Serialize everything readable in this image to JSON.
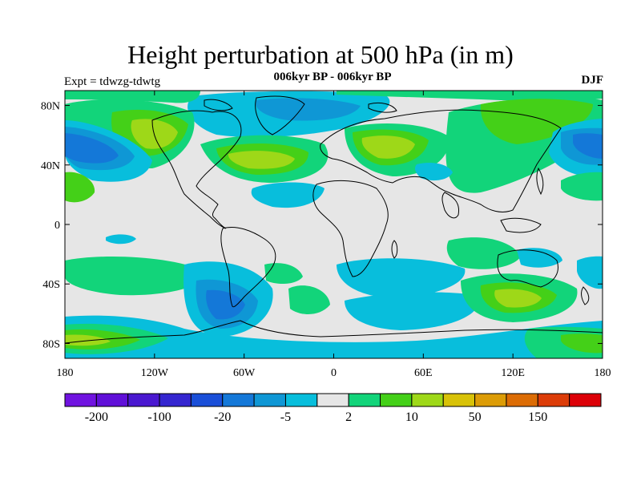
{
  "title": "Height perturbation at 500 hPa (in m)",
  "subtitle": "006kyr BP - 006kyr BP",
  "left_string": "Expt = tdwzg-tdwtg",
  "right_string": "DJF",
  "map": {
    "projection": "cylindrical-equidistant",
    "lon_range": [
      -180,
      180
    ],
    "lat_range": [
      -90,
      90
    ],
    "continents": "black outlines",
    "x_ticks": [
      {
        "lon": -180,
        "label": "180"
      },
      {
        "lon": -120,
        "label": "120W"
      },
      {
        "lon": -60,
        "label": "60W"
      },
      {
        "lon": 0,
        "label": "0"
      },
      {
        "lon": 60,
        "label": "60E"
      },
      {
        "lon": 120,
        "label": "120E"
      },
      {
        "lon": 180,
        "label": "180"
      }
    ],
    "y_ticks": [
      {
        "lat": 80,
        "label": "80N"
      },
      {
        "lat": 40,
        "label": "40N"
      },
      {
        "lat": 0,
        "label": "0"
      },
      {
        "lat": -40,
        "label": "40S"
      },
      {
        "lat": -80,
        "label": "80S"
      }
    ],
    "background_color": "#e6e6e6"
  },
  "colorbar": {
    "colors": [
      "#7013e0",
      "#6010d8",
      "#4a18d0",
      "#3526d0",
      "#1a4fd8",
      "#1478d8",
      "#0f97d5",
      "#08bedc",
      "#e6e6e6",
      "#12d47a",
      "#44d018",
      "#9ed818",
      "#d8c208",
      "#dc9c06",
      "#dc6c04",
      "#dc3c08",
      "#dc0008"
    ],
    "labels": [
      {
        "after_box": 1,
        "text": "-200"
      },
      {
        "after_box": 3,
        "text": "-100"
      },
      {
        "after_box": 5,
        "text": "-20"
      },
      {
        "after_box": 7,
        "text": "-5"
      },
      {
        "after_box": 9,
        "text": "2"
      },
      {
        "after_box": 11,
        "text": "10"
      },
      {
        "after_box": 13,
        "text": "50"
      },
      {
        "after_box": 15,
        "text": "150"
      }
    ]
  }
}
